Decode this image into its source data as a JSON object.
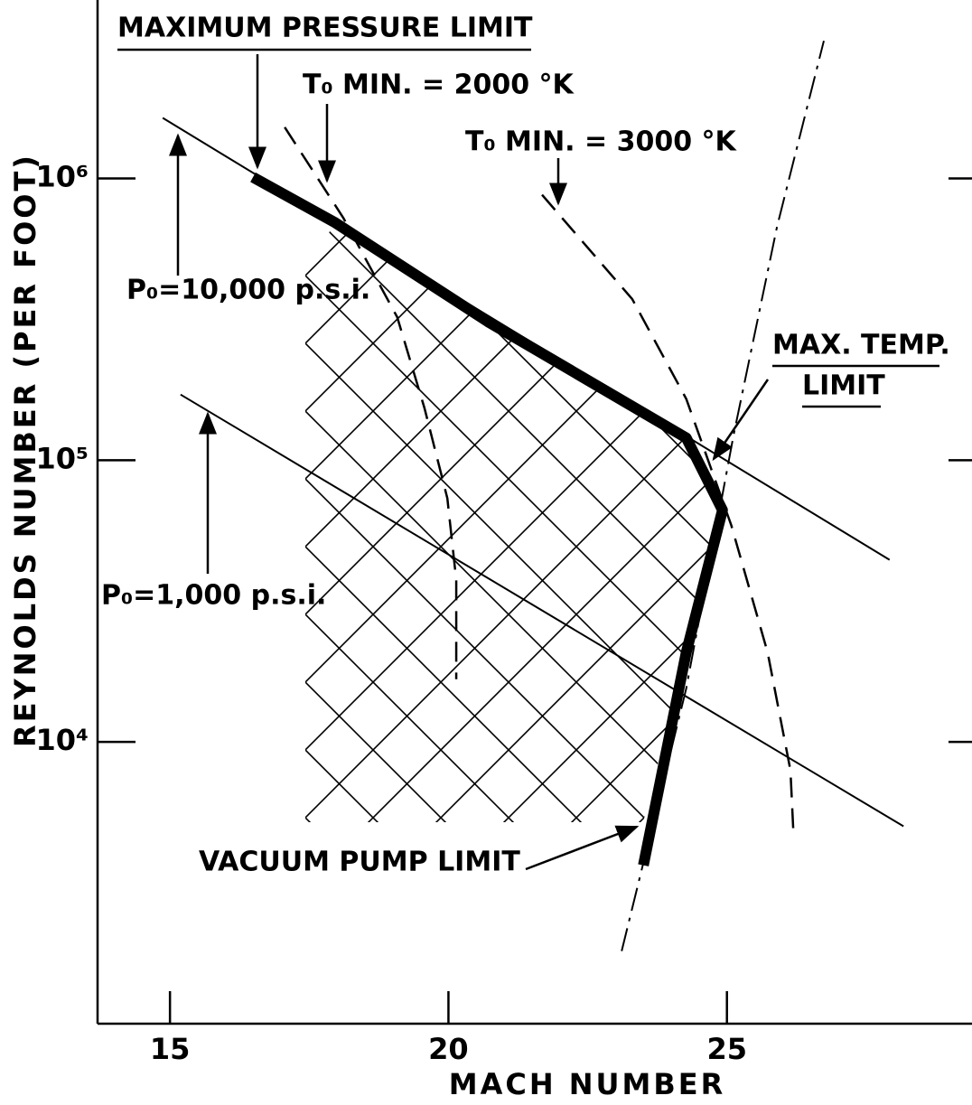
{
  "chart_data": {
    "type": "line",
    "xlabel": "MACH NUMBER",
    "ylabel": "REYNOLDS NUMBER (PER FOOT)",
    "xlim": [
      13.7,
      29.4
    ],
    "xticks": [
      15,
      20,
      25
    ],
    "ylim": [
      1000,
      4300000
    ],
    "yscale": "log",
    "yticks": [
      {
        "value": 10000,
        "label": "10⁴"
      },
      {
        "value": 100000,
        "label": "10⁵"
      },
      {
        "value": 1000000,
        "label": "10⁶"
      }
    ],
    "annotations": [
      "MAXIMUM PRESSURE LIMIT",
      "T₀ MIN. = 2000 °K",
      "T₀ MIN. = 3000 °K",
      "P₀=10,000 p.s.i.",
      "P₀=1,000 p.s.i.",
      "MAX. TEMP.",
      "LIMIT",
      "VACUUM PUMP LIMIT"
    ],
    "series": [
      {
        "color": "#000",
        "style": "solid",
        "width": 12,
        "x": [
          16.49,
          17.95,
          20.71,
          24.27,
          24.92,
          24.27,
          23.5
        ],
        "values": [
          1010000,
          700000,
          310000,
          120000,
          66500,
          20800,
          3650
        ]
      },
      {
        "color": "#000",
        "style": "solid",
        "width": 2,
        "x": [
          14.87,
          27.92
        ],
        "values": [
          1640000,
          44300
        ]
      },
      {
        "color": "#000",
        "style": "solid",
        "width": 2,
        "x": [
          15.19,
          28.17
        ],
        "values": [
          171000,
          5020
        ]
      },
      {
        "color": "#000",
        "style": "dashed",
        "width": 2.5,
        "x": [
          17.06,
          18.11,
          19.08,
          19.57,
          19.98,
          20.14,
          20.14
        ],
        "values": [
          1520000,
          726000,
          322000,
          153000,
          73300,
          37600,
          16700
        ]
      },
      {
        "color": "#000",
        "style": "dashed",
        "width": 2.5,
        "x": [
          21.68,
          23.3,
          24.27,
          25.08,
          25.73,
          26.14,
          26.19
        ],
        "values": [
          875000,
          373000,
          165000,
          58600,
          20800,
          7940,
          4930
        ]
      },
      {
        "color": "#000",
        "style": "dashdot",
        "width": 2,
        "x": [
          23.11,
          24.27,
          25.12,
          25.9,
          26.74
        ],
        "values": [
          1810,
          15500,
          123000,
          675000,
          3080000
        ]
      }
    ]
  }
}
